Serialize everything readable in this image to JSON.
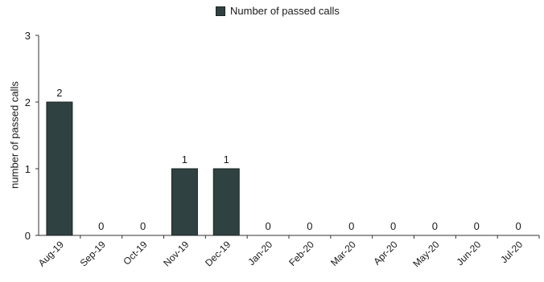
{
  "chart_data": {
    "type": "bar",
    "categories": [
      "Aug-19",
      "Sep-19",
      "Oct-19",
      "Nov-19",
      "Dec-19",
      "Jan-20",
      "Feb-20",
      "Mar-20",
      "Apr-20",
      "May-20",
      "Jun-20",
      "Jul-20"
    ],
    "series": [
      {
        "name": "Number of passed calls",
        "values": [
          2,
          0,
          0,
          1,
          1,
          0,
          0,
          0,
          0,
          0,
          0,
          0
        ]
      }
    ],
    "data_labels": [
      "2",
      "0",
      "0",
      "1",
      "1",
      "0",
      "0",
      "0",
      "0",
      "0",
      "0",
      "0"
    ],
    "ylabel": "number of passed calls",
    "xlabel": "",
    "ylim": [
      0,
      3
    ],
    "yticks": [
      "0",
      "1",
      "2",
      "3"
    ],
    "legend_position": "top-center",
    "grid": false,
    "colors": {
      "bar": "#2f4140",
      "axis": "#333333"
    }
  }
}
